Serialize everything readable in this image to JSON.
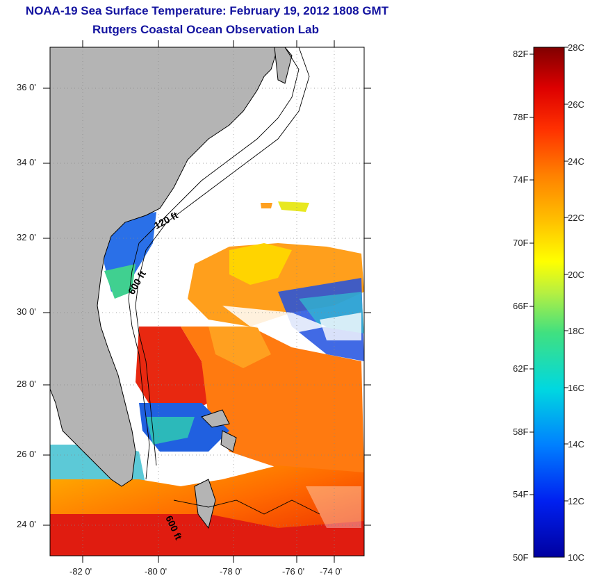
{
  "title": "NOAA-19 Sea Surface Temperature:  February 19, 2012 1808 GMT",
  "subtitle": "Rutgers Coastal Ocean Observation Lab",
  "map": {
    "lat_ticks": [
      "36 0'",
      "34 0'",
      "32 0'",
      "30 0'",
      "28 0'",
      "26 0'",
      "24 0'"
    ],
    "lon_ticks": [
      "-82 0'",
      "-80 0'",
      "-78 0'",
      "-76 0'",
      "-74 0'"
    ],
    "contour_labels": [
      "120 ft",
      "600 ft",
      "600 ft"
    ],
    "land_color": "#b4b4b4",
    "background_color": "#ffffff"
  },
  "colorbar": {
    "fahrenheit_labels": [
      "82F",
      "78F",
      "74F",
      "70F",
      "66F",
      "62F",
      "58F",
      "54F",
      "50F"
    ],
    "celsius_labels": [
      "28C",
      "26C",
      "24C",
      "22C",
      "20C",
      "18C",
      "16C",
      "14C",
      "12C",
      "10C"
    ],
    "colors": [
      "#0000a0",
      "#0030ff",
      "#0090ff",
      "#00e0e0",
      "#40e080",
      "#b0f040",
      "#ffff00",
      "#ffc000",
      "#ff8000",
      "#ff3000",
      "#e00000",
      "#800000"
    ]
  }
}
